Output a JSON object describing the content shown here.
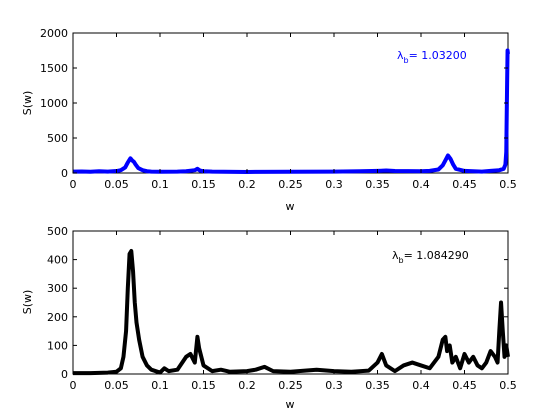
{
  "chart_data": [
    {
      "type": "line",
      "xlabel": "w",
      "ylabel": "S(w)",
      "xlim": [
        0,
        0.5
      ],
      "ylim": [
        0,
        2000
      ],
      "xticks": [
        "0",
        "0.05",
        "0.1",
        "0.15",
        "0.2",
        "0.25",
        "0.3",
        "0.35",
        "0.4",
        "0.45",
        "0.5"
      ],
      "xtick_values": [
        0,
        0.05,
        0.1,
        0.15,
        0.2,
        0.25,
        0.3,
        0.35,
        0.4,
        0.45,
        0.5
      ],
      "yticks": [
        "0",
        "500",
        "1000",
        "1500",
        "2000"
      ],
      "ytick_values": [
        0,
        500,
        1000,
        1500,
        2000
      ],
      "grid": false,
      "color": "#0000ff",
      "annotation": {
        "symbol": "λ",
        "subscript": "b",
        "text": "= 1.03200"
      },
      "series": [
        {
          "x": [
            0,
            0.01,
            0.02,
            0.03,
            0.04,
            0.05,
            0.055,
            0.06,
            0.063,
            0.066,
            0.068,
            0.07,
            0.072,
            0.075,
            0.08,
            0.085,
            0.09,
            0.1,
            0.12,
            0.13,
            0.14,
            0.143,
            0.146,
            0.15,
            0.16,
            0.2,
            0.25,
            0.3,
            0.33,
            0.35,
            0.36,
            0.37,
            0.4,
            0.41,
            0.42,
            0.425,
            0.428,
            0.431,
            0.434,
            0.437,
            0.44,
            0.45,
            0.46,
            0.47,
            0.48,
            0.49,
            0.495,
            0.497,
            0.498,
            0.499,
            0.4995,
            0.5
          ],
          "y": [
            20,
            22,
            18,
            25,
            20,
            28,
            40,
            80,
            150,
            210,
            180,
            160,
            120,
            70,
            40,
            25,
            20,
            18,
            20,
            25,
            40,
            60,
            35,
            25,
            20,
            15,
            18,
            20,
            25,
            30,
            35,
            28,
            25,
            30,
            50,
            110,
            180,
            250,
            200,
            120,
            60,
            30,
            25,
            20,
            30,
            40,
            60,
            120,
            300,
            1300,
            1750,
            1700
          ]
        }
      ]
    },
    {
      "type": "line",
      "xlabel": "w",
      "ylabel": "S(w)",
      "xlim": [
        0,
        0.5
      ],
      "ylim": [
        0,
        500
      ],
      "xticks": [
        "0",
        "0.05",
        "0.1",
        "0.15",
        "0.2",
        "0.25",
        "0.3",
        "0.35",
        "0.4",
        "0.45",
        "0.5"
      ],
      "xtick_values": [
        0,
        0.05,
        0.1,
        0.15,
        0.2,
        0.25,
        0.3,
        0.35,
        0.4,
        0.45,
        0.5
      ],
      "yticks": [
        "0",
        "100",
        "200",
        "300",
        "400",
        "500"
      ],
      "ytick_values": [
        0,
        100,
        200,
        300,
        400,
        500
      ],
      "grid": false,
      "color": "#000000",
      "annotation": {
        "symbol": "λ",
        "subscript": "b",
        "text": "= 1.084290"
      },
      "series": [
        {
          "x": [
            0,
            0.02,
            0.04,
            0.05,
            0.055,
            0.058,
            0.061,
            0.063,
            0.065,
            0.067,
            0.069,
            0.071,
            0.073,
            0.076,
            0.08,
            0.085,
            0.09,
            0.1,
            0.105,
            0.11,
            0.12,
            0.13,
            0.135,
            0.14,
            0.143,
            0.145,
            0.15,
            0.16,
            0.17,
            0.18,
            0.2,
            0.21,
            0.22,
            0.23,
            0.25,
            0.28,
            0.3,
            0.32,
            0.34,
            0.35,
            0.355,
            0.36,
            0.37,
            0.38,
            0.39,
            0.4,
            0.41,
            0.42,
            0.425,
            0.428,
            0.43,
            0.433,
            0.436,
            0.44,
            0.445,
            0.45,
            0.455,
            0.46,
            0.465,
            0.47,
            0.475,
            0.48,
            0.485,
            0.488,
            0.49,
            0.492,
            0.494,
            0.496,
            0.498,
            0.5
          ],
          "y": [
            3,
            3,
            5,
            8,
            20,
            60,
            150,
            300,
            420,
            430,
            360,
            250,
            180,
            120,
            60,
            30,
            15,
            5,
            20,
            10,
            15,
            60,
            70,
            40,
            130,
            90,
            30,
            10,
            15,
            8,
            10,
            15,
            25,
            10,
            8,
            15,
            10,
            8,
            12,
            40,
            70,
            30,
            10,
            30,
            40,
            30,
            20,
            60,
            120,
            130,
            80,
            100,
            40,
            60,
            20,
            70,
            40,
            60,
            30,
            20,
            40,
            80,
            60,
            40,
            150,
            250,
            150,
            60,
            100,
            60
          ]
        }
      ]
    }
  ]
}
